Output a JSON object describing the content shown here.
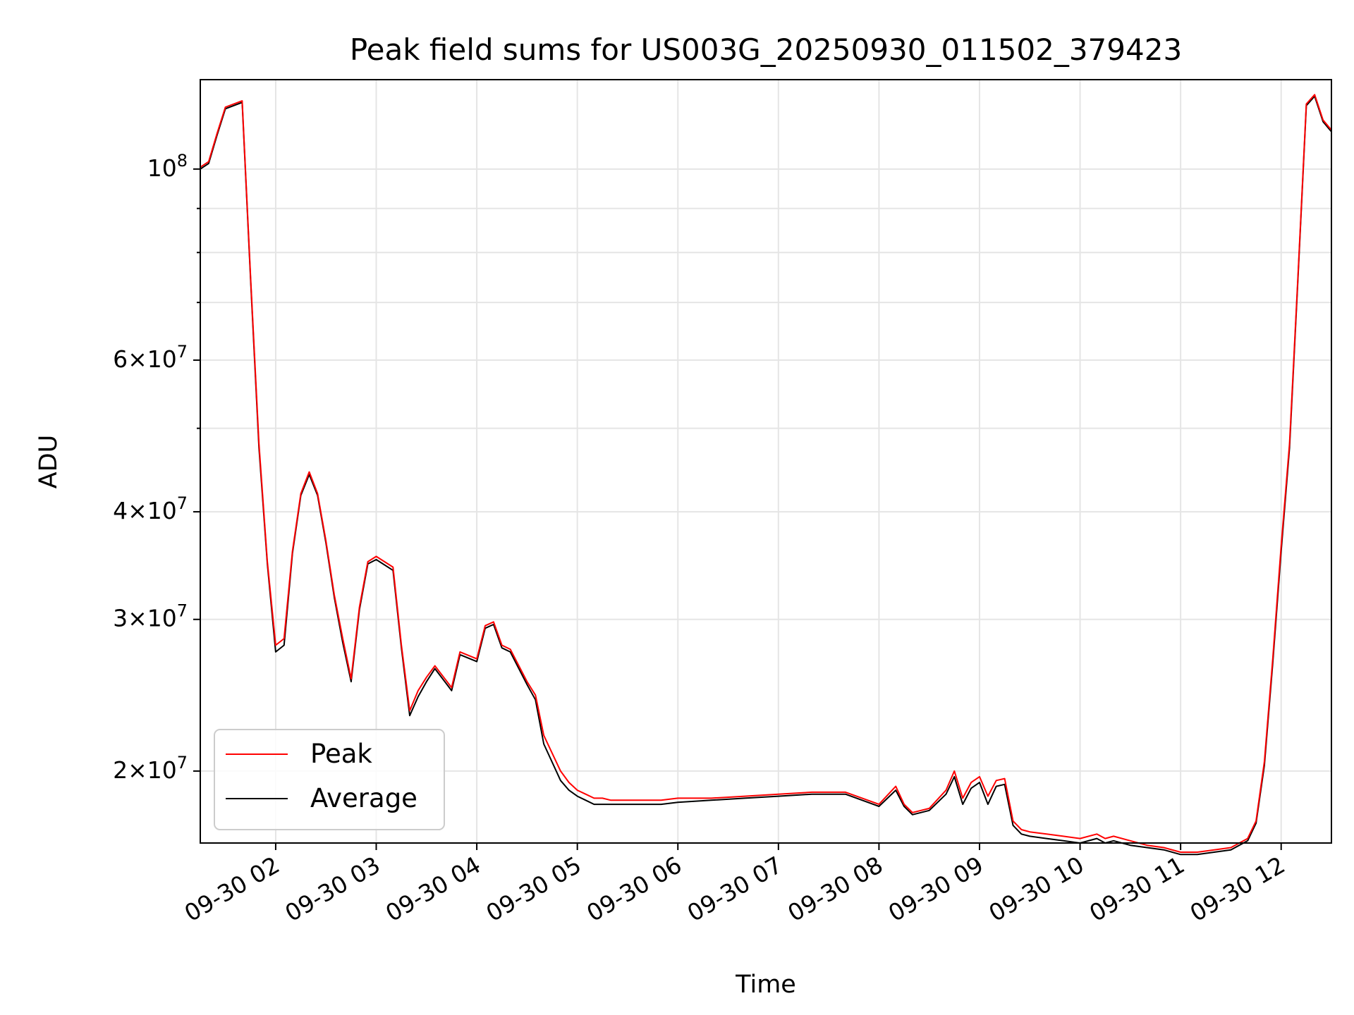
{
  "chart_data": {
    "type": "line",
    "title": "Peak field sums for US003G_20250930_011502_379423",
    "xlabel": "Time",
    "ylabel": "ADU",
    "xscale": "time",
    "yscale": "log",
    "xlim": [
      "2025-09-30 01:15",
      "2025-09-30 12:30"
    ],
    "ylim": [
      16500000,
      127000000
    ],
    "grid": true,
    "legend": "lower-left",
    "x_ticks": [
      "09-30 02",
      "09-30 03",
      "09-30 04",
      "09-30 05",
      "09-30 06",
      "09-30 07",
      "09-30 08",
      "09-30 09",
      "09-30 10",
      "09-30 11",
      "09-30 12"
    ],
    "y_ticks": [
      {
        "value": 20000000,
        "mantissa": "2",
        "exp": "7"
      },
      {
        "value": 30000000,
        "mantissa": "3",
        "exp": "7"
      },
      {
        "value": 40000000,
        "mantissa": "4",
        "exp": "7"
      },
      {
        "value": 60000000,
        "mantissa": "6",
        "exp": "7"
      },
      {
        "value": 100000000,
        "mantissa": "",
        "exp": "8"
      }
    ],
    "x": [
      "01:15",
      "01:20",
      "01:25",
      "01:30",
      "01:40",
      "01:45",
      "01:50",
      "01:55",
      "02:00",
      "02:05",
      "02:10",
      "02:15",
      "02:20",
      "02:25",
      "02:30",
      "02:35",
      "02:40",
      "02:45",
      "02:50",
      "02:55",
      "03:00",
      "03:10",
      "03:15",
      "03:20",
      "03:25",
      "03:30",
      "03:35",
      "03:45",
      "03:50",
      "04:00",
      "04:05",
      "04:10",
      "04:15",
      "04:20",
      "04:30",
      "04:35",
      "04:40",
      "04:50",
      "04:55",
      "05:00",
      "05:05",
      "05:10",
      "05:15",
      "05:20",
      "05:30",
      "05:40",
      "05:50",
      "06:00",
      "06:20",
      "06:40",
      "07:00",
      "07:20",
      "07:40",
      "07:50",
      "08:00",
      "08:10",
      "08:15",
      "08:20",
      "08:25",
      "08:30",
      "08:40",
      "08:45",
      "08:50",
      "08:55",
      "09:00",
      "09:05",
      "09:10",
      "09:15",
      "09:20",
      "09:25",
      "09:30",
      "09:40",
      "09:50",
      "10:00",
      "10:10",
      "10:15",
      "10:20",
      "10:30",
      "10:40",
      "10:50",
      "11:00",
      "11:10",
      "11:20",
      "11:30",
      "11:40",
      "11:45",
      "11:50",
      "11:55",
      "12:00",
      "12:05",
      "12:10",
      "12:15",
      "12:20",
      "12:25",
      "12:30"
    ],
    "series": [
      {
        "name": "Peak",
        "color": "#ff0000",
        "values": [
          100500000,
          102000000,
          110000000,
          118000000,
          120000000,
          75000000,
          48000000,
          35000000,
          28000000,
          28500000,
          36000000,
          42000000,
          44500000,
          42000000,
          37000000,
          32000000,
          28500000,
          25600000,
          31000000,
          35000000,
          35500000,
          34500000,
          28000000,
          23500000,
          24800000,
          25700000,
          26500000,
          25000000,
          27500000,
          27000000,
          29500000,
          29800000,
          28000000,
          27700000,
          25400000,
          24500000,
          22000000,
          20000000,
          19400000,
          19000000,
          18800000,
          18600000,
          18600000,
          18500000,
          18500000,
          18500000,
          18500000,
          18600000,
          18600000,
          18700000,
          18800000,
          18900000,
          18900000,
          18600000,
          18300000,
          19200000,
          18300000,
          17900000,
          18000000,
          18100000,
          19000000,
          20000000,
          18600000,
          19400000,
          19700000,
          18700000,
          19500000,
          19600000,
          17500000,
          17100000,
          17000000,
          16900000,
          16800000,
          16700000,
          16900000,
          16700000,
          16800000,
          16600000,
          16400000,
          16300000,
          16100000,
          16100000,
          16200000,
          16300000,
          16700000,
          17500000,
          20500000,
          27000000,
          36500000,
          48000000,
          75000000,
          119000000,
          122000000,
          114000000,
          111000000
        ]
      },
      {
        "name": "Average",
        "color": "#000000",
        "values": [
          100000000,
          101500000,
          109500000,
          117500000,
          119500000,
          74500000,
          47500000,
          34800000,
          27500000,
          28000000,
          35800000,
          41800000,
          44200000,
          41800000,
          36800000,
          31800000,
          28200000,
          25400000,
          30800000,
          34800000,
          35200000,
          34200000,
          27800000,
          23200000,
          24400000,
          25400000,
          26300000,
          24800000,
          27300000,
          26800000,
          29300000,
          29600000,
          27800000,
          27500000,
          25200000,
          24200000,
          21500000,
          19500000,
          19000000,
          18700000,
          18500000,
          18300000,
          18300000,
          18300000,
          18300000,
          18300000,
          18300000,
          18400000,
          18500000,
          18600000,
          18700000,
          18800000,
          18800000,
          18500000,
          18200000,
          19000000,
          18200000,
          17800000,
          17900000,
          18000000,
          18800000,
          19700000,
          18300000,
          19100000,
          19400000,
          18300000,
          19200000,
          19300000,
          17300000,
          16900000,
          16800000,
          16700000,
          16600000,
          16500000,
          16700000,
          16500000,
          16600000,
          16400000,
          16300000,
          16200000,
          16000000,
          16000000,
          16100000,
          16200000,
          16600000,
          17400000,
          20300000,
          26700000,
          36000000,
          47500000,
          74500000,
          118500000,
          121500000,
          113500000,
          110500000
        ]
      }
    ]
  }
}
